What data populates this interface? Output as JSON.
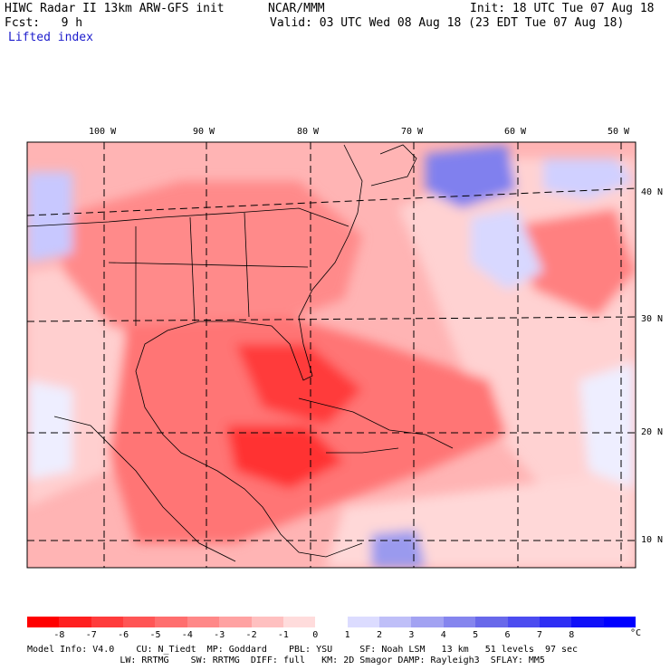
{
  "header": {
    "title_left": "HIWC Radar II 13km ARW-GFS init",
    "org": "NCAR/MMM",
    "init": "Init: 18 UTC Tue 07 Aug 18",
    "fcst": "Fcst:   9 h",
    "valid": "Valid: 03 UTC Wed 08 Aug 18 (23 EDT Tue 07 Aug 18)",
    "field": "Lifted index"
  },
  "map": {
    "lon_labels": [
      "100 W",
      "90 W",
      "80 W",
      "70 W",
      "60 W",
      "50 W"
    ],
    "lat_labels": [
      "40 N",
      "30 N",
      "20 N",
      "10 N"
    ],
    "gridlines": "dashed"
  },
  "colorbar": {
    "unit": "°C",
    "ticks": [
      "-8",
      "-7",
      "-6",
      "-5",
      "-4",
      "-3",
      "-2",
      "-1",
      "0",
      "1",
      "2",
      "3",
      "4",
      "5",
      "6",
      "7",
      "8"
    ],
    "colors": [
      "#ff0000",
      "#ff2020",
      "#ff3c3c",
      "#ff5555",
      "#ff6e6e",
      "#ff8888",
      "#ffa2a2",
      "#ffc0c0",
      "#ffdcdc",
      "#ffffff",
      "#dcdcff",
      "#bfbff8",
      "#a2a2f2",
      "#8585ee",
      "#6868ea",
      "#4c4cf0",
      "#2e2ef4",
      "#1010f8",
      "#0000ff"
    ]
  },
  "footer": {
    "line1": "Model Info: V4.0    CU: N_Tiedt  MP: Goddard    PBL: YSU     SF: Noah LSM   13 km   51 levels  97 sec",
    "line2": "                 LW: RRTMG    SW: RRTMG  DIFF: full   KM: 2D Smagor DAMP: Rayleigh3  SFLAY: MM5"
  }
}
